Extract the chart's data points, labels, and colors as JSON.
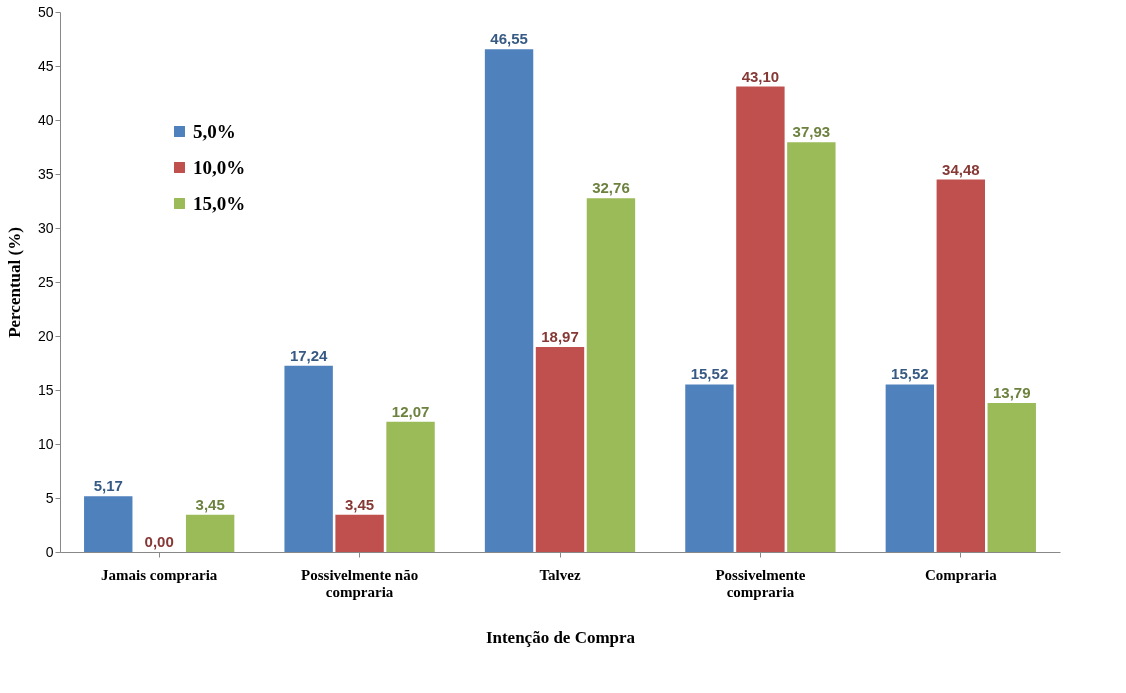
{
  "chart_data": {
    "type": "bar",
    "xlabel": "Intenção de Compra",
    "ylabel": "Percentual (%)",
    "categories": [
      "Jamais compraria",
      "Possivelmente não compraria",
      "Talvez",
      "Possivelmente compraria",
      "Compraria"
    ],
    "series": [
      {
        "name": "5,0%",
        "color": "#4f81bd",
        "values": [
          5.17,
          17.24,
          46.55,
          15.52,
          15.52
        ],
        "value_labels": [
          "5,17",
          "17,24",
          "46,55",
          "15,52",
          "15,52"
        ]
      },
      {
        "name": "10,0%",
        "color": "#c0504d",
        "values": [
          0.0,
          3.45,
          18.97,
          43.1,
          34.48
        ],
        "value_labels": [
          "0,00",
          "3,45",
          "18,97",
          "43,10",
          "34,48"
        ]
      },
      {
        "name": "15,0%",
        "color": "#9bbb59",
        "values": [
          3.45,
          12.07,
          32.76,
          37.93,
          13.79
        ],
        "value_labels": [
          "3,45",
          "12,07",
          "32,76",
          "37,93",
          "13,79"
        ]
      }
    ],
    "ylim": [
      0,
      50
    ],
    "yticks": [
      0,
      5,
      10,
      15,
      20,
      25,
      30,
      35,
      40,
      45,
      50
    ],
    "grid": false,
    "legend": "top left"
  }
}
